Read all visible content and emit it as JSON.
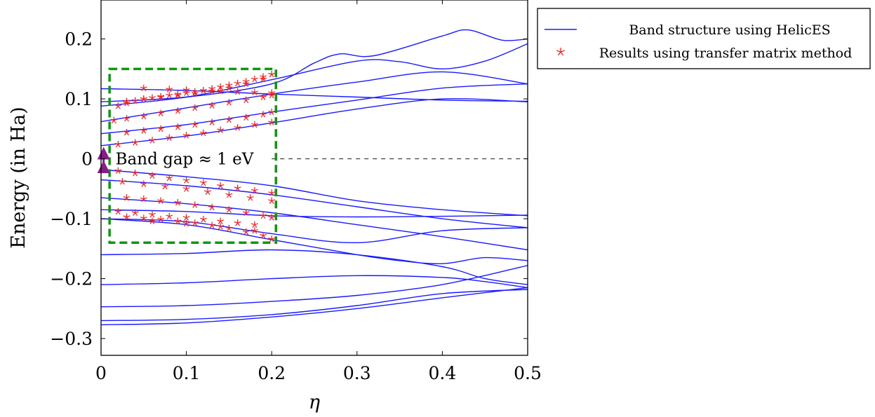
{
  "chart_data": {
    "type": "line",
    "title": "",
    "xlabel": "η",
    "ylabel": "Energy (in Ha)",
    "xlim": [
      0,
      0.5
    ],
    "ylim": [
      -0.328,
      0.265
    ],
    "xticks": [
      0,
      0.1,
      0.2,
      0.3,
      0.4,
      0.5
    ],
    "xtick_labels": [
      "0",
      "0.1",
      "0.2",
      "0.3",
      "0.4",
      "0.5"
    ],
    "yticks": [
      -0.3,
      -0.2,
      -0.1,
      0,
      0.1,
      0.2
    ],
    "ytick_labels": [
      "−0.3",
      "−0.2",
      "−0.1",
      "0",
      "0.1",
      "0.2"
    ],
    "grid": false,
    "legend_position": "outside-top-right",
    "colors": {
      "bands": "#1a1aff",
      "markers": "#ff1a1a",
      "box": "#0a9a0a",
      "gap_arrow": "#8b1a8b",
      "fermi_line": "#333333"
    },
    "annotation": {
      "text": "Band gap ≈ 1 eV",
      "x": 0.003,
      "y1": -0.018,
      "y2": 0.014
    },
    "highlight_box": {
      "x": [
        0.01,
        0.205
      ],
      "y": [
        -0.14,
        0.15
      ]
    },
    "fermi_level": {
      "y": 0,
      "x": [
        0.2,
        0.5
      ]
    },
    "series": [
      {
        "name": "Band structure using HelicES",
        "kind": "line",
        "bands": [
          {
            "x": [
              0,
              0.1,
              0.2,
              0.25,
              0.28,
              0.32,
              0.4,
              0.43,
              0.47,
              0.5
            ],
            "y": [
              0.095,
              0.103,
              0.125,
              0.16,
              0.175,
              0.172,
              0.205,
              0.215,
              0.198,
              0.2
            ]
          },
          {
            "x": [
              0,
              0.1,
              0.2,
              0.3,
              0.35,
              0.4,
              0.45,
              0.5
            ],
            "y": [
              0.088,
              0.103,
              0.132,
              0.163,
              0.162,
              0.15,
              0.163,
              0.192
            ]
          },
          {
            "x": [
              0,
              0.1,
              0.2,
              0.3,
              0.4,
              0.5
            ],
            "y": [
              0.117,
              0.114,
              0.108,
              0.103,
              0.098,
              0.096
            ]
          },
          {
            "x": [
              0,
              0.1,
              0.2,
              0.3,
              0.4,
              0.5
            ],
            "y": [
              0.062,
              0.085,
              0.108,
              0.128,
              0.145,
              0.125
            ]
          },
          {
            "x": [
              0,
              0.1,
              0.2,
              0.3,
              0.4,
              0.5
            ],
            "y": [
              0.042,
              0.057,
              0.078,
              0.098,
              0.118,
              0.125
            ]
          },
          {
            "x": [
              0,
              0.1,
              0.2,
              0.3,
              0.4,
              0.5
            ],
            "y": [
              0.022,
              0.038,
              0.06,
              0.083,
              0.1,
              0.095
            ]
          },
          {
            "x": [
              0,
              0.1,
              0.2,
              0.3,
              0.4,
              0.5
            ],
            "y": [
              -0.018,
              -0.03,
              -0.045,
              -0.07,
              -0.085,
              -0.095
            ]
          },
          {
            "x": [
              0,
              0.1,
              0.2,
              0.3,
              0.4,
              0.5
            ],
            "y": [
              -0.035,
              -0.045,
              -0.06,
              -0.08,
              -0.1,
              -0.115
            ]
          },
          {
            "x": [
              0,
              0.1,
              0.2,
              0.3,
              0.4,
              0.5
            ],
            "y": [
              -0.085,
              -0.088,
              -0.095,
              -0.097,
              -0.096,
              -0.094
            ]
          },
          {
            "x": [
              0,
              0.1,
              0.2,
              0.3,
              0.4,
              0.5
            ],
            "y": [
              -0.065,
              -0.075,
              -0.09,
              -0.11,
              -0.13,
              -0.152
            ]
          },
          {
            "x": [
              0,
              0.1,
              0.2,
              0.3,
              0.4,
              0.5
            ],
            "y": [
              -0.1,
              -0.105,
              -0.125,
              -0.14,
              -0.12,
              -0.115
            ]
          },
          {
            "x": [
              0,
              0.1,
              0.2,
              0.3,
              0.35,
              0.4,
              0.45,
              0.5
            ],
            "y": [
              -0.1,
              -0.11,
              -0.135,
              -0.16,
              -0.17,
              -0.175,
              -0.165,
              -0.17
            ]
          },
          {
            "x": [
              0,
              0.1,
              0.2,
              0.3,
              0.4,
              0.45,
              0.5
            ],
            "y": [
              -0.16,
              -0.158,
              -0.152,
              -0.16,
              -0.18,
              -0.2,
              -0.21
            ]
          },
          {
            "x": [
              0,
              0.1,
              0.2,
              0.3,
              0.4,
              0.45,
              0.5
            ],
            "y": [
              -0.21,
              -0.207,
              -0.2,
              -0.195,
              -0.198,
              -0.205,
              -0.215
            ]
          },
          {
            "x": [
              0,
              0.1,
              0.2,
              0.3,
              0.4,
              0.5
            ],
            "y": [
              -0.247,
              -0.245,
              -0.238,
              -0.228,
              -0.21,
              -0.178
            ]
          },
          {
            "x": [
              0,
              0.1,
              0.2,
              0.3,
              0.4,
              0.5
            ],
            "y": [
              -0.27,
              -0.268,
              -0.26,
              -0.245,
              -0.225,
              -0.218
            ]
          },
          {
            "x": [
              0,
              0.1,
              0.2,
              0.3,
              0.4,
              0.5
            ],
            "y": [
              -0.277,
              -0.274,
              -0.264,
              -0.25,
              -0.232,
              -0.215
            ]
          }
        ]
      },
      {
        "name": "Results using transfer matrix method",
        "kind": "scatter",
        "marker": "star",
        "points": [
          [
            0.02,
            0.088
          ],
          [
            0.03,
            0.093
          ],
          [
            0.04,
            0.097
          ],
          [
            0.05,
            0.1
          ],
          [
            0.06,
            0.102
          ],
          [
            0.07,
            0.104
          ],
          [
            0.08,
            0.106
          ],
          [
            0.09,
            0.108
          ],
          [
            0.1,
            0.11
          ],
          [
            0.11,
            0.112
          ],
          [
            0.12,
            0.114
          ],
          [
            0.13,
            0.117
          ],
          [
            0.14,
            0.12
          ],
          [
            0.15,
            0.123
          ],
          [
            0.16,
            0.126
          ],
          [
            0.17,
            0.129
          ],
          [
            0.18,
            0.133
          ],
          [
            0.19,
            0.137
          ],
          [
            0.2,
            0.141
          ],
          [
            0.03,
            0.096
          ],
          [
            0.05,
            0.1
          ],
          [
            0.07,
            0.103
          ],
          [
            0.09,
            0.106
          ],
          [
            0.11,
            0.109
          ],
          [
            0.13,
            0.113
          ],
          [
            0.15,
            0.118
          ],
          [
            0.17,
            0.125
          ],
          [
            0.19,
            0.133
          ],
          [
            0.05,
            0.118
          ],
          [
            0.08,
            0.116
          ],
          [
            0.1,
            0.115
          ],
          [
            0.12,
            0.114
          ],
          [
            0.14,
            0.113
          ],
          [
            0.16,
            0.112
          ],
          [
            0.18,
            0.111
          ],
          [
            0.2,
            0.11
          ],
          [
            0.015,
            0.064
          ],
          [
            0.03,
            0.067
          ],
          [
            0.05,
            0.071
          ],
          [
            0.07,
            0.076
          ],
          [
            0.09,
            0.08
          ],
          [
            0.11,
            0.085
          ],
          [
            0.13,
            0.089
          ],
          [
            0.15,
            0.094
          ],
          [
            0.17,
            0.098
          ],
          [
            0.19,
            0.103
          ],
          [
            0.2,
            0.106
          ],
          [
            0.03,
            0.044
          ],
          [
            0.05,
            0.047
          ],
          [
            0.07,
            0.05
          ],
          [
            0.09,
            0.053
          ],
          [
            0.11,
            0.057
          ],
          [
            0.13,
            0.061
          ],
          [
            0.15,
            0.065
          ],
          [
            0.17,
            0.069
          ],
          [
            0.19,
            0.074
          ],
          [
            0.2,
            0.078
          ],
          [
            0.02,
            0.024
          ],
          [
            0.04,
            0.027
          ],
          [
            0.06,
            0.031
          ],
          [
            0.08,
            0.035
          ],
          [
            0.1,
            0.039
          ],
          [
            0.12,
            0.043
          ],
          [
            0.14,
            0.048
          ],
          [
            0.16,
            0.052
          ],
          [
            0.18,
            0.057
          ],
          [
            0.2,
            0.061
          ],
          [
            0.02,
            -0.02
          ],
          [
            0.04,
            -0.024
          ],
          [
            0.06,
            -0.028
          ],
          [
            0.08,
            -0.032
          ],
          [
            0.1,
            -0.036
          ],
          [
            0.12,
            -0.04
          ],
          [
            0.14,
            -0.045
          ],
          [
            0.16,
            -0.049
          ],
          [
            0.18,
            -0.053
          ],
          [
            0.2,
            -0.057
          ],
          [
            0.025,
            -0.038
          ],
          [
            0.05,
            -0.042
          ],
          [
            0.075,
            -0.046
          ],
          [
            0.1,
            -0.05
          ],
          [
            0.125,
            -0.055
          ],
          [
            0.15,
            -0.06
          ],
          [
            0.175,
            -0.065
          ],
          [
            0.2,
            -0.07
          ],
          [
            0.03,
            -0.065
          ],
          [
            0.05,
            -0.067
          ],
          [
            0.07,
            -0.07
          ],
          [
            0.09,
            -0.073
          ],
          [
            0.11,
            -0.077
          ],
          [
            0.13,
            -0.081
          ],
          [
            0.15,
            -0.085
          ],
          [
            0.17,
            -0.09
          ],
          [
            0.19,
            -0.095
          ],
          [
            0.2,
            -0.098
          ],
          [
            0.02,
            -0.088
          ],
          [
            0.04,
            -0.09
          ],
          [
            0.06,
            -0.093
          ],
          [
            0.08,
            -0.096
          ],
          [
            0.1,
            -0.098
          ],
          [
            0.12,
            -0.101
          ],
          [
            0.14,
            -0.104
          ],
          [
            0.16,
            -0.107
          ],
          [
            0.18,
            -0.11
          ],
          [
            0.03,
            -0.097
          ],
          [
            0.05,
            -0.099
          ],
          [
            0.07,
            -0.101
          ],
          [
            0.09,
            -0.104
          ],
          [
            0.11,
            -0.107
          ],
          [
            0.13,
            -0.111
          ],
          [
            0.15,
            -0.116
          ],
          [
            0.17,
            -0.122
          ],
          [
            0.19,
            -0.128
          ],
          [
            0.2,
            -0.134
          ],
          [
            0.06,
            -0.104
          ],
          [
            0.1,
            -0.108
          ],
          [
            0.14,
            -0.113
          ],
          [
            0.18,
            -0.12
          ]
        ]
      }
    ]
  }
}
